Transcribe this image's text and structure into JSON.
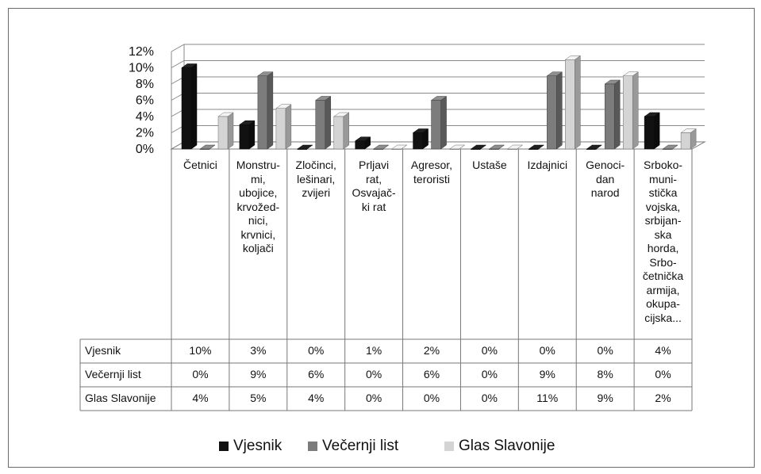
{
  "chart_data": {
    "type": "bar",
    "categories": [
      "Četnici",
      "Monstru-\nmi,\nubojice,\nkrvožed-\nnici,\nkrvnici,\nkoljači",
      "Zločinci,\nlešinari,\nzvijeri",
      "Prljavi\nrat,\nOsvajač-\nki rat",
      "Agresor,\nteroristi",
      "Ustaše",
      "Izdajnici",
      "Genoci-\ndan\nnarod",
      "Srboko-\nmuni-\nstička\nvojska,\nsrbijan-\nska\nhorda,\nSrbo-\nčetnička\narmija,\nokupa-\ncijska..."
    ],
    "series": [
      {
        "name": "Vjesnik",
        "values": [
          10,
          3,
          0,
          1,
          2,
          0,
          0,
          0,
          4
        ],
        "labels": [
          "10%",
          "3%",
          "0%",
          "1%",
          "2%",
          "0%",
          "0%",
          "0%",
          "4%"
        ],
        "color": "#111111"
      },
      {
        "name": "Večernji list",
        "values": [
          0,
          9,
          6,
          0,
          6,
          0,
          9,
          8,
          0
        ],
        "labels": [
          "0%",
          "9%",
          "6%",
          "0%",
          "6%",
          "0%",
          "9%",
          "8%",
          "0%"
        ],
        "color": "#7c7c7c"
      },
      {
        "name": "Glas Slavonije",
        "values": [
          4,
          5,
          4,
          0,
          0,
          0,
          11,
          9,
          2
        ],
        "labels": [
          "4%",
          "5%",
          "4%",
          "0%",
          "0%",
          "0%",
          "11%",
          "9%",
          "2%"
        ],
        "color": "#d4d4d4"
      }
    ],
    "yticks": [
      "0%",
      "2%",
      "4%",
      "6%",
      "8%",
      "10%",
      "12%"
    ],
    "ylim": [
      0,
      12
    ],
    "grid": true,
    "legend": "bottom",
    "data_table": true,
    "style": "3d-clustered-column"
  }
}
